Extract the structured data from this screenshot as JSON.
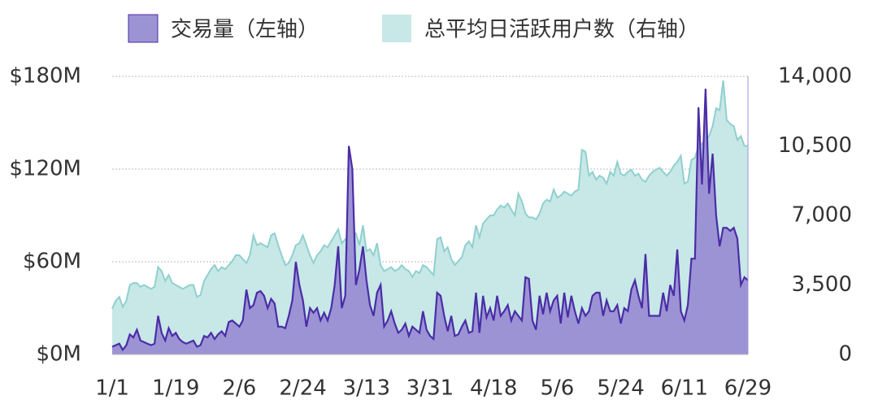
{
  "chart_data": {
    "type": "area",
    "legend_position": "top",
    "categories": [
      "1/1",
      null,
      null,
      null,
      null,
      null,
      null,
      null,
      null,
      null,
      null,
      null,
      null,
      null,
      null,
      null,
      null,
      null,
      "1/19",
      null,
      null,
      null,
      null,
      null,
      null,
      null,
      null,
      null,
      null,
      null,
      null,
      null,
      null,
      null,
      null,
      null,
      "2/6",
      null,
      null,
      null,
      null,
      null,
      null,
      null,
      null,
      null,
      null,
      null,
      null,
      null,
      null,
      null,
      null,
      null,
      "2/24",
      null,
      null,
      null,
      null,
      null,
      null,
      null,
      null,
      null,
      null,
      null,
      null,
      null,
      null,
      null,
      null,
      null,
      "3/13",
      null,
      null,
      null,
      null,
      null,
      null,
      null,
      null,
      null,
      null,
      null,
      null,
      null,
      null,
      null,
      null,
      null,
      "3/31",
      null,
      null,
      null,
      null,
      null,
      null,
      null,
      null,
      null,
      null,
      null,
      null,
      null,
      null,
      null,
      null,
      null,
      "4/18",
      null,
      null,
      null,
      null,
      null,
      null,
      null,
      null,
      null,
      null,
      null,
      null,
      null,
      null,
      null,
      null,
      null,
      "5/6",
      null,
      null,
      null,
      null,
      null,
      null,
      null,
      null,
      null,
      null,
      null,
      null,
      null,
      null,
      null,
      null,
      null,
      "5/24",
      null,
      null,
      null,
      null,
      null,
      null,
      null,
      null,
      null,
      null,
      null,
      null,
      null,
      null,
      null,
      null,
      null,
      "6/11",
      null,
      null,
      null,
      null,
      null,
      null,
      null,
      null,
      null,
      null,
      null,
      null,
      null,
      null,
      null,
      null,
      null,
      "6/29"
    ],
    "ylim": [
      0,
      180
    ],
    "yticks": [
      {
        "value": 0,
        "label": "$0M"
      },
      {
        "value": 60,
        "label": "$60M"
      },
      {
        "value": 120,
        "label": "$120M"
      },
      {
        "value": 180,
        "label": "$180M"
      }
    ],
    "y2lim": [
      0,
      14000
    ],
    "y2ticks": [
      0,
      {
        "value": 3500,
        "label": "3,500"
      },
      {
        "value": 7000,
        "label": "7,000"
      },
      {
        "value": 10500,
        "label": "10,500"
      },
      {
        "value": 14000,
        "label": "14,000"
      }
    ],
    "grid": true,
    "series": [
      {
        "name": "交易量（左轴）",
        "color": "#4b2ca6",
        "fill": "#9c93d4",
        "axis": "y",
        "values": [
          5,
          6,
          7,
          3,
          6,
          13,
          11,
          16,
          9,
          8,
          7,
          6,
          7,
          25,
          14,
          9,
          17,
          12,
          14,
          10,
          8,
          7,
          8,
          9,
          5,
          6,
          12,
          11,
          14,
          10,
          13,
          15,
          12,
          21,
          22,
          20,
          18,
          22,
          42,
          30,
          32,
          40,
          41,
          38,
          30,
          36,
          33,
          18,
          18,
          17,
          25,
          35,
          60,
          45,
          35,
          18,
          30,
          27,
          30,
          22,
          27,
          22,
          30,
          45,
          70,
          30,
          38,
          135,
          120,
          45,
          55,
          70,
          48,
          32,
          25,
          40,
          45,
          18,
          22,
          28,
          20,
          14,
          16,
          20,
          12,
          18,
          16,
          14,
          28,
          16,
          12,
          10,
          40,
          38,
          25,
          15,
          25,
          12,
          13,
          18,
          22,
          14,
          15,
          40,
          14,
          38,
          24,
          30,
          22,
          38,
          25,
          28,
          32,
          22,
          28,
          25,
          22,
          50,
          49,
          22,
          16,
          38,
          26,
          40,
          28,
          35,
          38,
          20,
          40,
          24,
          38,
          28,
          20,
          30,
          25,
          28,
          38,
          40,
          40,
          25,
          35,
          28,
          28,
          32,
          20,
          30,
          28,
          42,
          48,
          38,
          30,
          65,
          25,
          25,
          25,
          25,
          40,
          28,
          45,
          38,
          68,
          28,
          22,
          32,
          62,
          62,
          160,
          110,
          172,
          104,
          130,
          90,
          70,
          82,
          82,
          80,
          82,
          75,
          45,
          50,
          48
        ]
      },
      {
        "name": "总平均日活跃用户数（右轴）",
        "color": "#8fd0cf",
        "fill": "#c7e8e7",
        "axis": "y2",
        "values": [
          2300,
          2700,
          2900,
          2400,
          2700,
          3500,
          3600,
          3600,
          3400,
          3500,
          3400,
          3300,
          3400,
          4400,
          4200,
          3700,
          4000,
          3600,
          3500,
          3400,
          3300,
          3400,
          3500,
          3500,
          2900,
          3000,
          3700,
          4000,
          4300,
          4500,
          4200,
          4400,
          4300,
          4500,
          4700,
          5000,
          5000,
          4800,
          4600,
          5000,
          6000,
          5500,
          5600,
          5500,
          5400,
          6000,
          6100,
          5500,
          5000,
          4500,
          4600,
          5000,
          5500,
          5600,
          6000,
          5500,
          5000,
          4600,
          5000,
          5200,
          5500,
          5400,
          5700,
          6000,
          6300,
          5600,
          5800,
          5600,
          6000,
          6100,
          5500,
          6500,
          5200,
          5300,
          5000,
          5600,
          4500,
          4200,
          4300,
          4400,
          4200,
          4300,
          4500,
          4300,
          4200,
          3900,
          4200,
          4100,
          4500,
          4400,
          4200,
          4000,
          5800,
          5900,
          5200,
          5400,
          4800,
          4500,
          4700,
          4900,
          5500,
          5700,
          5400,
          6500,
          5900,
          6600,
          6800,
          7000,
          7000,
          7300,
          7500,
          7400,
          7600,
          7300,
          7000,
          8100,
          7700,
          7100,
          6900,
          6900,
          6800,
          7100,
          7600,
          7800,
          7700,
          8300,
          7900,
          8000,
          8200,
          8100,
          8000,
          8200,
          8300,
          10300,
          10200,
          9000,
          9200,
          8800,
          9000,
          8900,
          8600,
          9200,
          9000,
          9700,
          9100,
          9000,
          9200,
          9300,
          9000,
          9100,
          8800,
          8700,
          9000,
          9200,
          9300,
          9400,
          9200,
          9000,
          9200,
          9500,
          9700,
          10000,
          8600,
          8700,
          9800,
          9900,
          10500,
          10600,
          10800,
          11000,
          11500,
          12400,
          12300,
          13800,
          11800,
          11600,
          11500,
          10800,
          11000,
          10500,
          10500
        ]
      }
    ]
  }
}
